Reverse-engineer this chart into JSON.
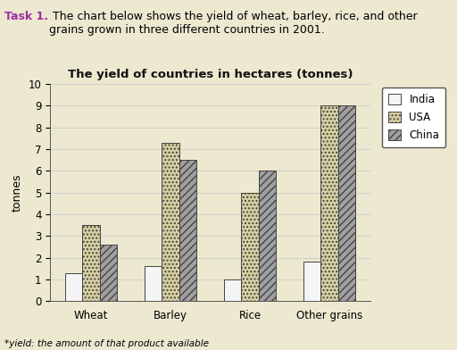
{
  "title": "The yield of countries in hectares (tonnes)",
  "categories": [
    "Wheat",
    "Barley",
    "Rice",
    "Other grains"
  ],
  "countries": [
    "India",
    "USA",
    "China"
  ],
  "values": {
    "India": [
      1.3,
      1.6,
      1.0,
      1.8
    ],
    "USA": [
      3.5,
      7.3,
      5.0,
      9.0
    ],
    "China": [
      2.6,
      6.5,
      6.0,
      9.0
    ]
  },
  "ylabel": "tonnes",
  "ylim": [
    0,
    10
  ],
  "yticks": [
    0,
    1,
    2,
    3,
    4,
    5,
    6,
    7,
    8,
    9,
    10
  ],
  "background_color": "#ede8d0",
  "chart_bg_color": "#ede8d0",
  "footnote": "*yield: the amount of that product available",
  "header_task": "Task 1.",
  "header_rest": " The chart below shows the yield of wheat, barley, rice, and other\ngrains grown in three different countries in 2001.",
  "bar_width": 0.22,
  "colors": {
    "India": "#f5f5f5",
    "USA": "#d8cfa0",
    "China": "#a0a0a0"
  },
  "hatches": {
    "India": "",
    "USA": "....",
    "China": "////"
  },
  "edgecolor": "#444444",
  "title_color": "#111111",
  "header_task_color": "#9b30a0",
  "grid_color": "#cccccc",
  "legend_labels": [
    "India",
    "USA",
    "China"
  ]
}
